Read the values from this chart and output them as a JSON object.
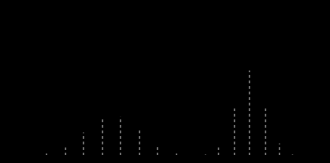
{
  "background_color": "#000000",
  "line_color": "#777777",
  "aptitude_mean": 0.0,
  "aptitude_std": 1.0,
  "achievement_mean": 5.2,
  "achievement_std": 0.55,
  "aptitude_lines_x": [
    -3.2,
    -2.5,
    -1.8,
    -1.1,
    -0.4,
    0.3,
    1.0,
    1.7,
    2.4
  ],
  "achievement_lines_x": [
    3.5,
    4.0,
    4.6,
    5.2,
    5.8,
    6.3,
    6.8
  ],
  "scale_apt": 0.28,
  "scale_ach": 0.58,
  "x_range": [
    -4.0,
    8.0
  ],
  "y_range": [
    0.0,
    1.0
  ],
  "linewidth": 1.0,
  "dash_on": 2,
  "dash_off": 2
}
